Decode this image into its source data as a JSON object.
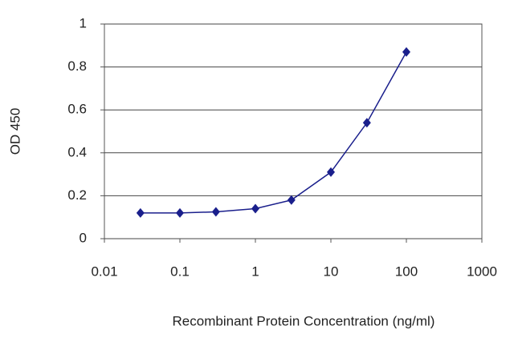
{
  "chart_data": {
    "type": "line",
    "xlabel": "Recombinant Protein Concentration (ng/ml)",
    "ylabel": "OD 450",
    "xscale": "log",
    "x": [
      0.03,
      0.1,
      0.3,
      1,
      3,
      10,
      30,
      100
    ],
    "series": [
      {
        "color": "#1a1f8c",
        "values": [
          0.12,
          0.12,
          0.125,
          0.14,
          0.18,
          0.31,
          0.54,
          0.87
        ]
      }
    ],
    "xlim": [
      0.01,
      1000
    ],
    "xticks": [
      0.01,
      0.1,
      1,
      10,
      100,
      1000
    ],
    "ylim": [
      0,
      1
    ],
    "yticks": [
      0,
      0.2,
      0.4,
      0.6,
      0.8,
      1
    ],
    "grid": true
  }
}
